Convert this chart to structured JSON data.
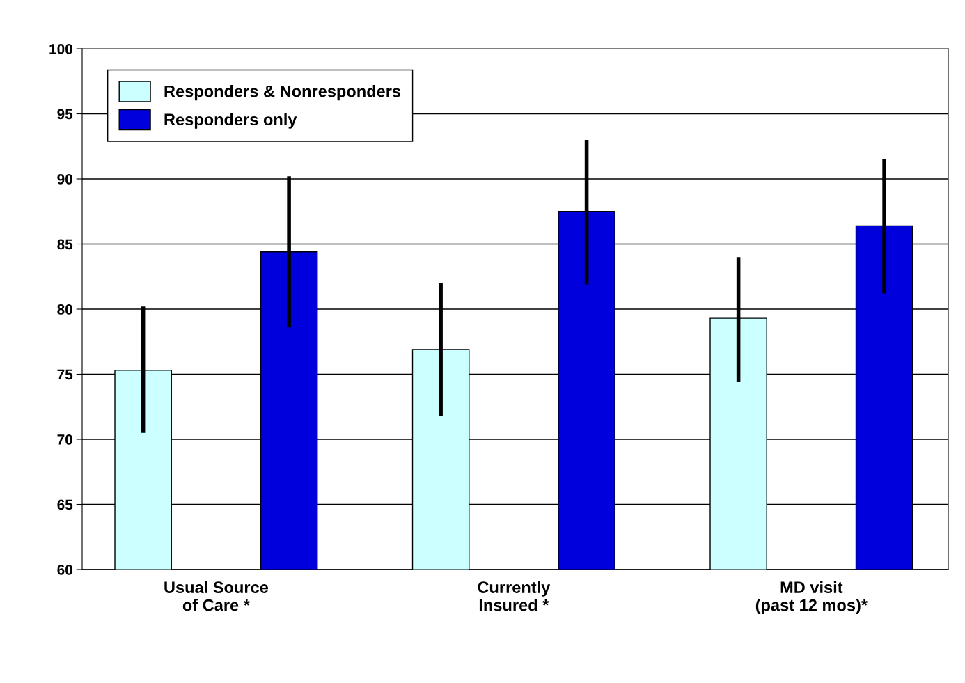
{
  "chart_data": {
    "type": "bar",
    "categories": [
      "Usual Source\nof Care *",
      "Currently\nInsured *",
      "MD visit\n(past 12 mos)*"
    ],
    "series": [
      {
        "name": "Responders & Nonresponders",
        "color": "#ccffff",
        "values": [
          75.3,
          76.9,
          79.3
        ],
        "errors": [
          [
            70.5,
            80.2
          ],
          [
            71.8,
            82.0
          ],
          [
            74.4,
            84.0
          ]
        ]
      },
      {
        "name": "Responders only",
        "color": "#0000dd",
        "values": [
          84.4,
          87.5,
          86.4
        ],
        "errors": [
          [
            78.6,
            90.2
          ],
          [
            81.9,
            93.0
          ],
          [
            81.2,
            91.5
          ]
        ]
      }
    ],
    "ylim": [
      60,
      100
    ],
    "yticks": [
      60,
      65,
      70,
      75,
      80,
      85,
      90,
      95,
      100
    ],
    "grid": "y",
    "legend": "top left"
  }
}
